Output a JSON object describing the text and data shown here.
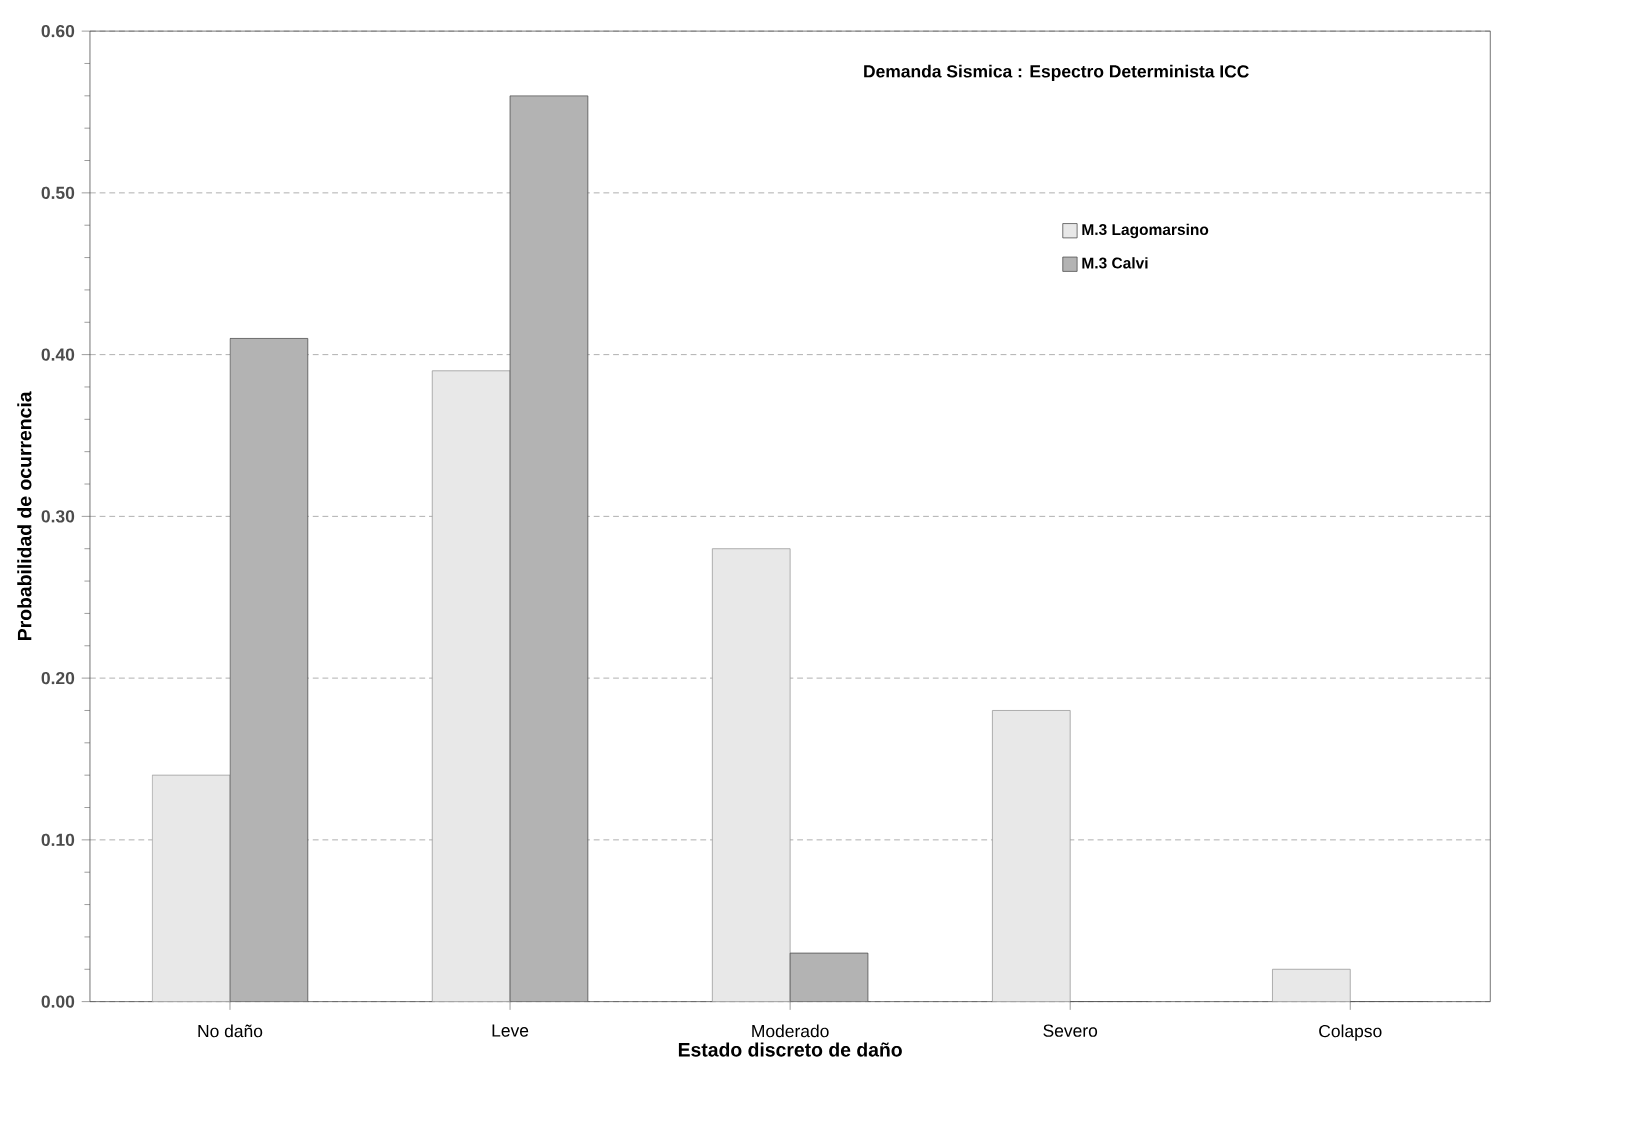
{
  "chart_data": {
    "type": "bar",
    "title": "Demanda Sismica : Espectro Determinista ICC",
    "xlabel": "Estado discreto de daño",
    "ylabel": "Probabilidad de ocurrencia",
    "categories": [
      "No daño",
      "Leve",
      "Moderado",
      "Severo",
      "Colapso"
    ],
    "series": [
      {
        "name": "M.3 Lagomarsino",
        "color": "#e8e8e8",
        "values": [
          0.14,
          0.39,
          0.28,
          0.18,
          0.02
        ]
      },
      {
        "name": "M.3 Calvi",
        "color": "#b3b3b3",
        "values": [
          0.41,
          0.56,
          0.03,
          0,
          0
        ]
      }
    ],
    "ylim": [
      0,
      0.6
    ],
    "yticks": [
      {
        "value": 0,
        "label": "0.00"
      },
      {
        "value": 0.1,
        "label": "0.10"
      },
      {
        "value": 0.2,
        "label": "0.20"
      },
      {
        "value": 0.3,
        "label": "0.30"
      },
      {
        "value": 0.4,
        "label": "0.40"
      },
      {
        "value": 0.5,
        "label": "0.50"
      },
      {
        "value": 0.6,
        "label": "0.60"
      }
    ],
    "grid": "y",
    "legend": "top right"
  }
}
